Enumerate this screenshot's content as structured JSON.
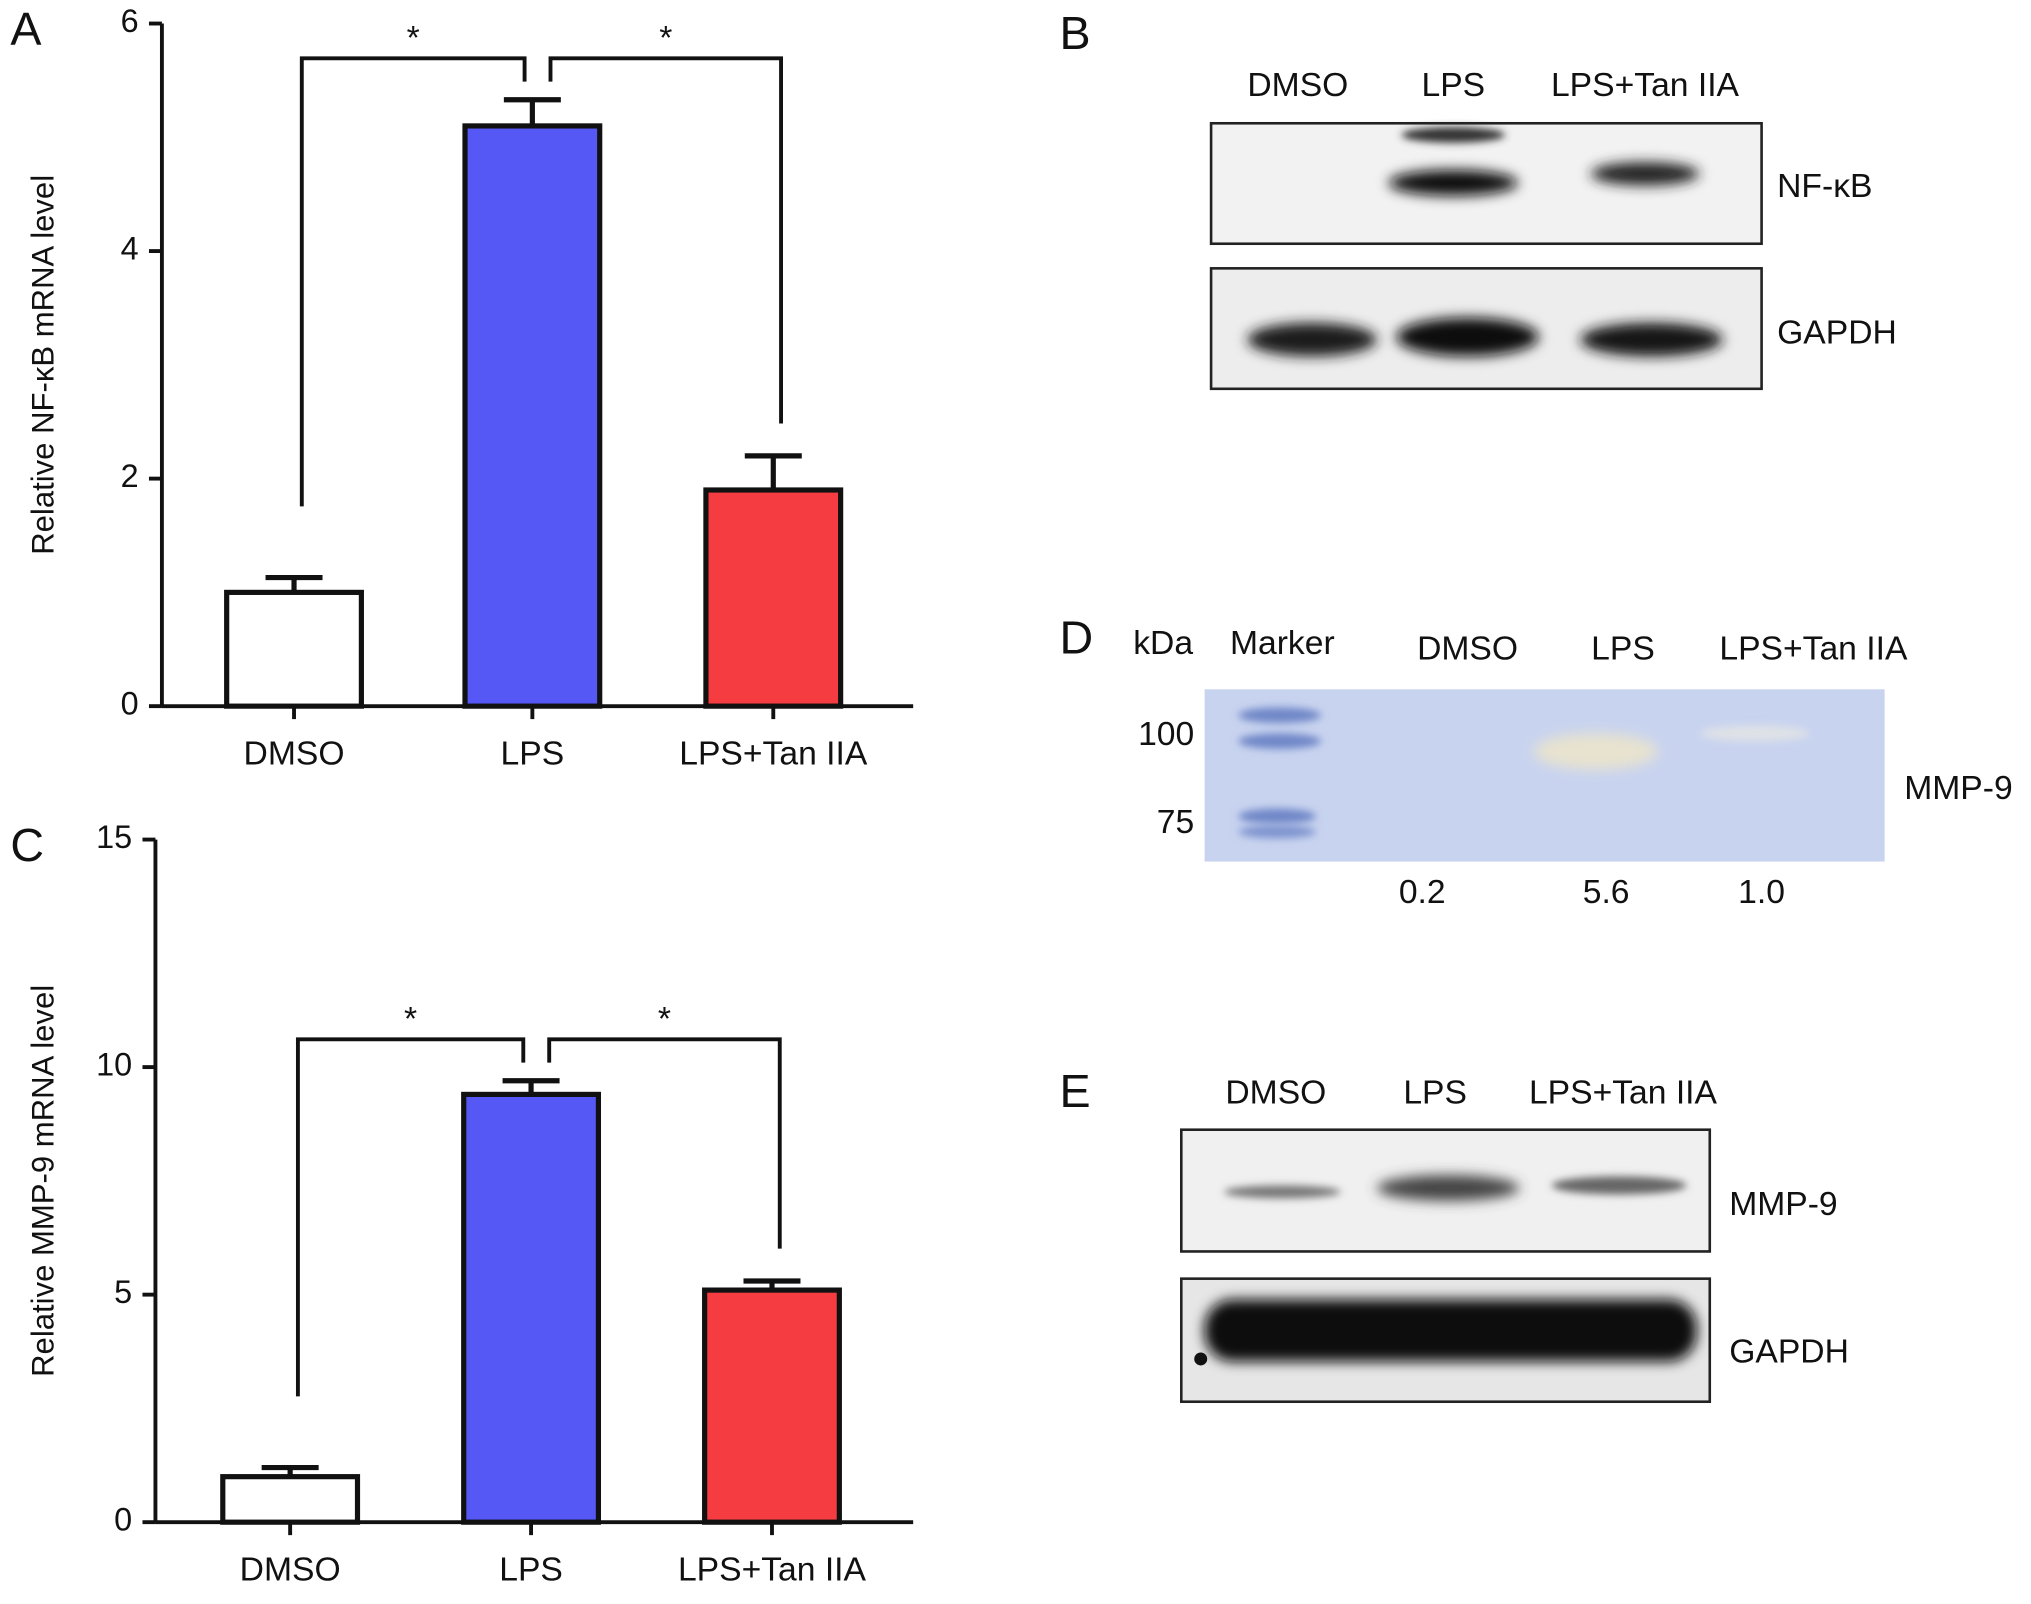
{
  "chart_data": [
    {
      "type": "bar",
      "panel": "A",
      "ylabel": "Relative NF-κB mRNA level",
      "categories": [
        "DMSO",
        "LPS",
        "LPS+Tan IIA"
      ],
      "values": [
        1.0,
        5.1,
        1.9
      ],
      "errors": [
        0.13,
        0.23,
        0.3
      ],
      "colors": [
        "#ffffff",
        "#5558f5",
        "#f53c40"
      ],
      "ylim": [
        0,
        6
      ],
      "yticks": [
        0,
        2,
        4,
        6
      ],
      "annotations": [
        "*",
        "*"
      ]
    },
    {
      "type": "bar",
      "panel": "C",
      "ylabel": "Relative MMP-9 mRNA level",
      "categories": [
        "DMSO",
        "LPS",
        "LPS+Tan IIA"
      ],
      "values": [
        1.0,
        9.4,
        5.1
      ],
      "errors": [
        0.2,
        0.3,
        0.2
      ],
      "colors": [
        "#ffffff",
        "#5558f5",
        "#f53c40"
      ],
      "ylim": [
        0,
        15
      ],
      "yticks": [
        0,
        5,
        10,
        15
      ],
      "annotations": [
        "*",
        "*"
      ]
    }
  ],
  "blots": [
    {
      "panel": "B",
      "lanes": [
        "DMSO",
        "LPS",
        "LPS+Tan IIA"
      ],
      "rows": [
        "NF-κB",
        "GAPDH"
      ]
    },
    {
      "panel": "D",
      "units": "kDa",
      "marker": "Marker",
      "lanes": [
        "DMSO",
        "LPS",
        "LPS+Tan IIA"
      ],
      "sizes": [
        "100",
        "75"
      ],
      "rows": [
        "MMP-9"
      ],
      "quantification": [
        "0.2",
        "5.6",
        "1.0"
      ]
    },
    {
      "panel": "E",
      "lanes": [
        "DMSO",
        "LPS",
        "LPS+Tan IIA"
      ],
      "rows": [
        "MMP-9",
        "GAPDH"
      ]
    }
  ]
}
